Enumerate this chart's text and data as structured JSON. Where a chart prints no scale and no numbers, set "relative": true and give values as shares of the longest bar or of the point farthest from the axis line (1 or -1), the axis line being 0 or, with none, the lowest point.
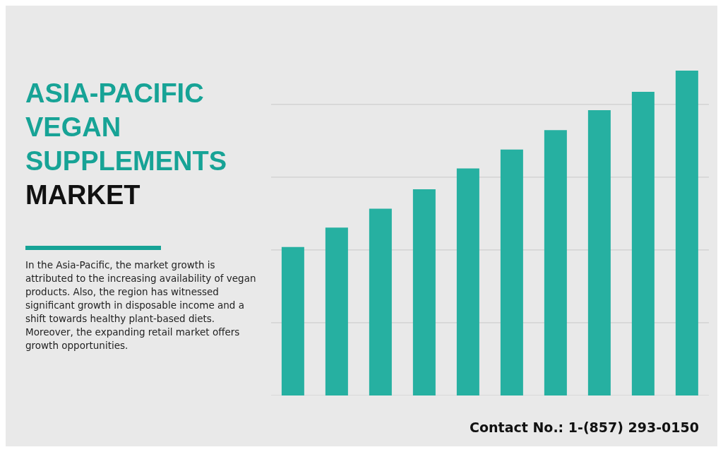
{
  "chart_data": {
    "type": "bar",
    "title": "ASIA-PACIFIC VEGAN SUPPLEMENTS",
    "subtitle": "MARKET",
    "relative": true,
    "grid": "y",
    "color": "#26b0a1",
    "categories": [
      null,
      null,
      null,
      null,
      null,
      null,
      null,
      null,
      null,
      null
    ],
    "values": [
      0.457,
      0.517,
      0.575,
      0.635,
      0.699,
      0.757,
      0.817,
      0.878,
      0.935,
      1
    ],
    "annotations": [
      "In the Asia-Pacific, the market growth is attributed to the increasing availability of vegan products. Also, the region has witnessed significant growth in disposable income and a shift towards healthy plant-based diets. Moreover, the expanding retail market offers growth opportunities.",
      "Contact No.: 1-(857) 293-0150"
    ]
  }
}
